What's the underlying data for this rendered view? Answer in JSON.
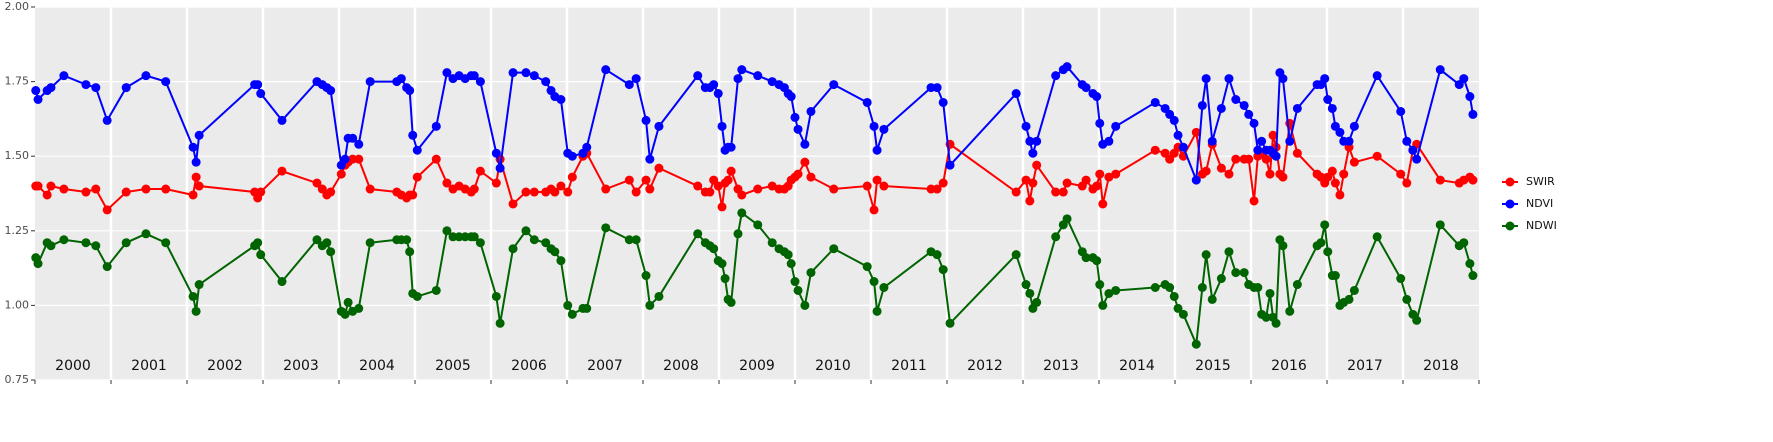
{
  "chart_data": {
    "type": "line",
    "x": [
      2000.01,
      2000.04,
      2000.16,
      2000.21,
      2000.38,
      2000.67,
      2000.8,
      2000.95,
      2001.2,
      2001.46,
      2001.72,
      2002.08,
      2002.12,
      2002.16,
      2002.89,
      2002.93,
      2002.97,
      2003.25,
      2003.71,
      2003.78,
      2003.84,
      2003.89,
      2004.03,
      2004.08,
      2004.12,
      2004.18,
      2004.26,
      2004.41,
      2004.76,
      2004.82,
      2004.89,
      2004.93,
      2004.97,
      2005.03,
      2005.28,
      2005.42,
      2005.5,
      2005.58,
      2005.66,
      2005.74,
      2005.78,
      2005.86,
      2006.07,
      2006.12,
      2006.29,
      2006.46,
      2006.57,
      2006.72,
      2006.79,
      2006.84,
      2006.92,
      2007.01,
      2007.07,
      2007.21,
      2007.26,
      2007.51,
      2007.82,
      2007.91,
      2008.04,
      2008.09,
      2008.21,
      2008.72,
      2008.82,
      2008.88,
      2008.93,
      2008.99,
      2009.04,
      2009.08,
      2009.12,
      2009.16,
      2009.25,
      2009.3,
      2009.51,
      2009.7,
      2009.79,
      2009.86,
      2009.91,
      2009.95,
      2010.0,
      2010.04,
      2010.13,
      2010.21,
      2010.51,
      2010.95,
      2011.04,
      2011.08,
      2011.17,
      2011.79,
      2011.87,
      2011.95,
      2012.04,
      2012.91,
      2013.04,
      2013.09,
      2013.13,
      2013.18,
      2013.43,
      2013.53,
      2013.58,
      2013.78,
      2013.83,
      2013.92,
      2013.97,
      2014.01,
      2014.05,
      2014.13,
      2014.22,
      2014.74,
      2014.87,
      2014.93,
      2014.99,
      2015.04,
      2015.11,
      2015.28,
      2015.36,
      2015.41,
      2015.49,
      2015.61,
      2015.71,
      2015.8,
      2015.91,
      2015.97,
      2016.04,
      2016.09,
      2016.14,
      2016.2,
      2016.25,
      2016.29,
      2016.33,
      2016.38,
      2016.42,
      2016.51,
      2016.61,
      2016.87,
      2016.92,
      2016.97,
      2017.01,
      2017.07,
      2017.11,
      2017.17,
      2017.22,
      2017.29,
      2017.36,
      2017.66,
      2017.97,
      2018.05,
      2018.13,
      2018.18,
      2018.49,
      2018.74,
      2018.8,
      2018.88,
      2018.92
    ],
    "series": [
      {
        "name": "SWIR",
        "color": "#ff0000",
        "values": [
          1.4,
          1.4,
          1.37,
          1.4,
          1.39,
          1.38,
          1.39,
          1.32,
          1.38,
          1.39,
          1.39,
          1.37,
          1.43,
          1.4,
          1.38,
          1.36,
          1.38,
          1.45,
          1.41,
          1.39,
          1.37,
          1.38,
          1.44,
          1.47,
          1.48,
          1.49,
          1.49,
          1.39,
          1.38,
          1.37,
          1.36,
          1.37,
          1.37,
          1.43,
          1.49,
          1.41,
          1.39,
          1.4,
          1.39,
          1.38,
          1.39,
          1.45,
          1.41,
          1.49,
          1.34,
          1.38,
          1.38,
          1.38,
          1.39,
          1.38,
          1.4,
          1.38,
          1.43,
          1.5,
          1.51,
          1.39,
          1.42,
          1.38,
          1.42,
          1.39,
          1.46,
          1.4,
          1.38,
          1.38,
          1.42,
          1.4,
          1.33,
          1.41,
          1.42,
          1.45,
          1.39,
          1.37,
          1.39,
          1.4,
          1.39,
          1.39,
          1.4,
          1.42,
          1.43,
          1.44,
          1.48,
          1.43,
          1.39,
          1.4,
          1.32,
          1.42,
          1.4,
          1.39,
          1.39,
          1.41,
          1.54,
          1.38,
          1.42,
          1.35,
          1.41,
          1.47,
          1.38,
          1.38,
          1.41,
          1.4,
          1.42,
          1.39,
          1.4,
          1.44,
          1.34,
          1.43,
          1.44,
          1.52,
          1.51,
          1.49,
          1.51,
          1.53,
          1.5,
          1.58,
          1.44,
          1.45,
          1.54,
          1.46,
          1.44,
          1.49,
          1.49,
          1.49,
          1.35,
          1.5,
          1.51,
          1.49,
          1.44,
          1.57,
          1.53,
          1.44,
          1.43,
          1.61,
          1.51,
          1.44,
          1.43,
          1.41,
          1.43,
          1.45,
          1.41,
          1.37,
          1.44,
          1.53,
          1.48,
          1.5,
          1.44,
          1.41,
          1.52,
          1.54,
          1.42,
          1.41,
          1.42,
          1.43,
          1.42
        ]
      },
      {
        "name": "NDVI",
        "color": "#0000ff",
        "values": [
          1.72,
          1.69,
          1.72,
          1.73,
          1.77,
          1.74,
          1.73,
          1.62,
          1.73,
          1.77,
          1.75,
          1.53,
          1.48,
          1.57,
          1.74,
          1.74,
          1.71,
          1.62,
          1.75,
          1.74,
          1.73,
          1.72,
          1.47,
          1.49,
          1.56,
          1.56,
          1.54,
          1.75,
          1.75,
          1.76,
          1.73,
          1.72,
          1.57,
          1.52,
          1.6,
          1.78,
          1.76,
          1.77,
          1.76,
          1.77,
          1.77,
          1.75,
          1.51,
          1.46,
          1.78,
          1.78,
          1.77,
          1.75,
          1.72,
          1.7,
          1.69,
          1.51,
          1.5,
          1.51,
          1.53,
          1.79,
          1.74,
          1.76,
          1.62,
          1.49,
          1.6,
          1.77,
          1.73,
          1.73,
          1.74,
          1.71,
          1.6,
          1.52,
          1.53,
          1.53,
          1.76,
          1.79,
          1.77,
          1.75,
          1.74,
          1.73,
          1.71,
          1.7,
          1.63,
          1.59,
          1.54,
          1.65,
          1.74,
          1.68,
          1.6,
          1.52,
          1.59,
          1.73,
          1.73,
          1.68,
          1.47,
          1.71,
          1.6,
          1.55,
          1.51,
          1.55,
          1.77,
          1.79,
          1.8,
          1.74,
          1.73,
          1.71,
          1.7,
          1.61,
          1.54,
          1.55,
          1.6,
          1.68,
          1.66,
          1.64,
          1.62,
          1.57,
          1.53,
          1.42,
          1.67,
          1.76,
          1.55,
          1.66,
          1.76,
          1.69,
          1.67,
          1.64,
          1.61,
          1.52,
          1.55,
          1.52,
          1.52,
          1.51,
          1.5,
          1.78,
          1.76,
          1.55,
          1.66,
          1.74,
          1.74,
          1.76,
          1.69,
          1.66,
          1.6,
          1.58,
          1.55,
          1.55,
          1.6,
          1.77,
          1.65,
          1.55,
          1.52,
          1.49,
          1.79,
          1.74,
          1.76,
          1.7,
          1.64
        ]
      },
      {
        "name": "NDWI",
        "color": "#006400",
        "values": [
          1.16,
          1.14,
          1.21,
          1.2,
          1.22,
          1.21,
          1.2,
          1.13,
          1.21,
          1.24,
          1.21,
          1.03,
          0.98,
          1.07,
          1.2,
          1.21,
          1.17,
          1.08,
          1.22,
          1.2,
          1.21,
          1.18,
          0.98,
          0.97,
          1.01,
          0.98,
          0.99,
          1.21,
          1.22,
          1.22,
          1.22,
          1.18,
          1.04,
          1.03,
          1.05,
          1.25,
          1.23,
          1.23,
          1.23,
          1.23,
          1.23,
          1.21,
          1.03,
          0.94,
          1.19,
          1.25,
          1.22,
          1.21,
          1.19,
          1.18,
          1.15,
          1.0,
          0.97,
          0.99,
          0.99,
          1.26,
          1.22,
          1.22,
          1.1,
          1.0,
          1.03,
          1.24,
          1.21,
          1.2,
          1.19,
          1.15,
          1.14,
          1.09,
          1.02,
          1.01,
          1.24,
          1.31,
          1.27,
          1.21,
          1.19,
          1.18,
          1.17,
          1.14,
          1.08,
          1.05,
          1.0,
          1.11,
          1.19,
          1.13,
          1.08,
          0.98,
          1.06,
          1.18,
          1.17,
          1.12,
          0.94,
          1.17,
          1.07,
          1.04,
          0.99,
          1.01,
          1.23,
          1.27,
          1.29,
          1.18,
          1.16,
          1.16,
          1.15,
          1.07,
          1.0,
          1.04,
          1.05,
          1.06,
          1.07,
          1.06,
          1.03,
          0.99,
          0.97,
          0.87,
          1.06,
          1.17,
          1.02,
          1.09,
          1.18,
          1.11,
          1.11,
          1.07,
          1.06,
          1.06,
          0.97,
          0.96,
          1.04,
          0.96,
          0.94,
          1.22,
          1.2,
          0.98,
          1.07,
          1.2,
          1.21,
          1.27,
          1.18,
          1.1,
          1.1,
          1.0,
          1.01,
          1.02,
          1.05,
          1.23,
          1.09,
          1.02,
          0.97,
          0.95,
          1.27,
          1.2,
          1.21,
          1.14,
          1.1
        ]
      }
    ],
    "xlim": [
      2000,
      2019
    ],
    "xticks": [
      {
        "value": 2000.5,
        "label": "2000"
      },
      {
        "value": 2001.5,
        "label": "2001"
      },
      {
        "value": 2002.5,
        "label": "2002"
      },
      {
        "value": 2003.5,
        "label": "2003"
      },
      {
        "value": 2004.5,
        "label": "2004"
      },
      {
        "value": 2005.5,
        "label": "2005"
      },
      {
        "value": 2006.5,
        "label": "2006"
      },
      {
        "value": 2007.5,
        "label": "2007"
      },
      {
        "value": 2008.5,
        "label": "2008"
      },
      {
        "value": 2009.5,
        "label": "2009"
      },
      {
        "value": 2010.5,
        "label": "2010"
      },
      {
        "value": 2011.5,
        "label": "2011"
      },
      {
        "value": 2012.5,
        "label": "2012"
      },
      {
        "value": 2013.5,
        "label": "2013"
      },
      {
        "value": 2014.5,
        "label": "2014"
      },
      {
        "value": 2015.5,
        "label": "2015"
      },
      {
        "value": 2016.5,
        "label": "2016"
      },
      {
        "value": 2017.5,
        "label": "2017"
      },
      {
        "value": 2018.5,
        "label": "2018"
      }
    ],
    "ylim": [
      0.75,
      2.0
    ],
    "yticks": [
      0.75,
      {
        "value": 1,
        "label": "1.00"
      },
      1.25,
      {
        "value": 1.5,
        "label": "1.50"
      },
      1.75,
      {
        "value": 2,
        "label": "2.00"
      }
    ],
    "grid": true,
    "legend": "right"
  }
}
